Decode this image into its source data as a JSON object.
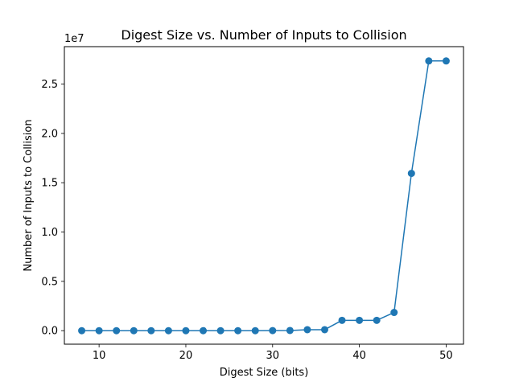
{
  "chart_data": {
    "type": "line",
    "title": "Digest Size vs. Number of Inputs to Collision",
    "xlabel": "Digest Size (bits)",
    "ylabel": "Number of Inputs to Collision",
    "y_offset_label": "1e7",
    "xlim": [
      6,
      52
    ],
    "ylim": [
      -1370000,
      28800000
    ],
    "x_ticks": [
      10,
      20,
      30,
      40,
      50
    ],
    "y_ticks": [
      0,
      5000000,
      10000000,
      15000000,
      20000000,
      25000000
    ],
    "y_tick_labels": [
      "0.0",
      "0.5",
      "1.0",
      "1.5",
      "2.0",
      "2.5"
    ],
    "grid": false,
    "color": "#1f77b4",
    "marker": "circle",
    "series": [
      {
        "x": [
          8,
          10,
          12,
          14,
          16,
          18,
          20,
          22,
          24,
          26,
          28,
          30,
          32,
          34,
          36,
          38,
          40,
          42,
          44,
          46,
          48,
          50
        ],
        "values": [
          0,
          0,
          0,
          0,
          0,
          0,
          0,
          0,
          0,
          0,
          0,
          10000,
          20000,
          100000,
          100000,
          1050000,
          1050000,
          1050000,
          1850000,
          15950000,
          27350000,
          27350000
        ]
      }
    ]
  }
}
